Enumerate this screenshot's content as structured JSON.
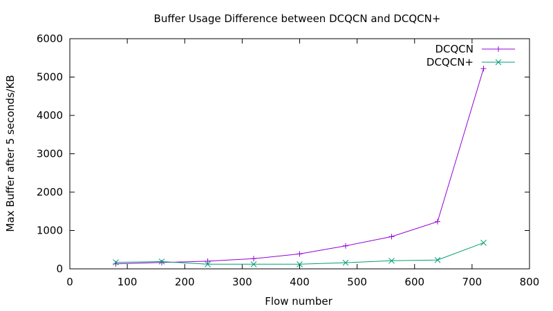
{
  "chart_data": {
    "type": "line",
    "title": "Buffer Usage Difference between DCQCN and DCQCN+",
    "xlabel": "Flow number",
    "ylabel": "Max Buffer after 5 seconds/KB",
    "xlim": [
      0,
      800
    ],
    "ylim": [
      0,
      6000
    ],
    "xticks": [
      0,
      100,
      200,
      300,
      400,
      500,
      600,
      700,
      800
    ],
    "yticks": [
      0,
      1000,
      2000,
      3000,
      4000,
      5000,
      6000
    ],
    "grid": false,
    "legend_position": "top-right",
    "series": [
      {
        "name": "DCQCN",
        "color": "#9400d3",
        "marker": "plus",
        "x": [
          80,
          160,
          240,
          320,
          400,
          480,
          560,
          640,
          720
        ],
        "values": [
          130,
          165,
          200,
          265,
          390,
          600,
          840,
          1230,
          5220
        ]
      },
      {
        "name": "DCQCN+",
        "color": "#009e73",
        "marker": "cross",
        "x": [
          80,
          160,
          240,
          320,
          400,
          480,
          560,
          640,
          720
        ],
        "values": [
          170,
          190,
          120,
          120,
          120,
          160,
          210,
          230,
          680
        ]
      }
    ]
  }
}
